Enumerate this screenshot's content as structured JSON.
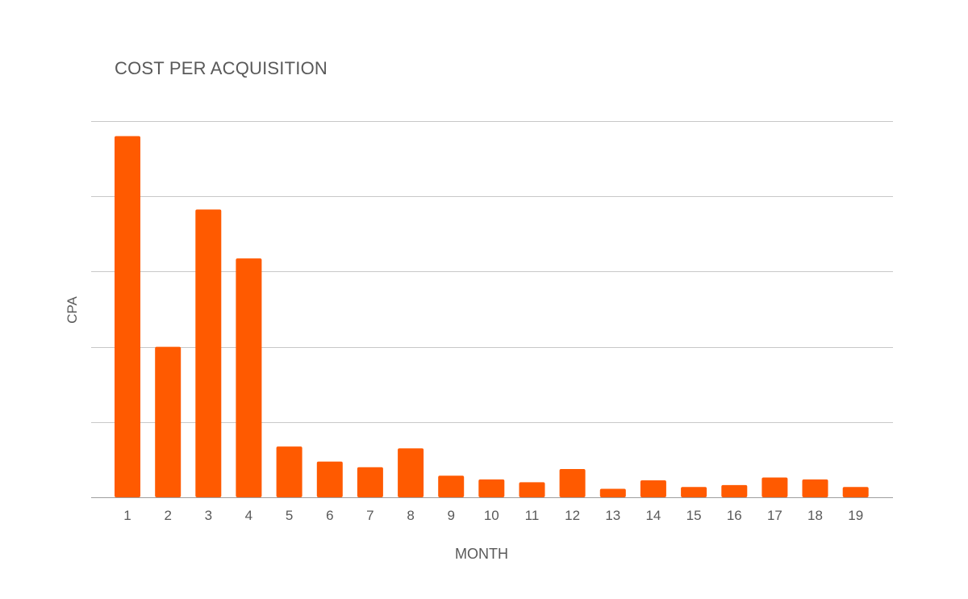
{
  "chart_data": {
    "type": "bar",
    "title": "COST PER ACQUISITION",
    "xlabel": "MONTH",
    "ylabel": "CPA",
    "categories": [
      "1",
      "2",
      "3",
      "4",
      "5",
      "6",
      "7",
      "8",
      "9",
      "10",
      "11",
      "12",
      "13",
      "14",
      "15",
      "16",
      "17",
      "18",
      "19"
    ],
    "values": [
      19.2,
      8.0,
      15.3,
      12.7,
      2.7,
      1.9,
      1.6,
      2.6,
      1.15,
      0.95,
      0.8,
      1.5,
      0.45,
      0.9,
      0.55,
      0.65,
      1.05,
      0.95,
      0.55
    ],
    "ylim": [
      0,
      20
    ],
    "gridlines": 5,
    "grid": true,
    "legend": "none",
    "y_tick_labels_shown": false,
    "bar_color": "#ff5a00",
    "grid_color": "#c8c8c8",
    "text_color": "#595959"
  }
}
